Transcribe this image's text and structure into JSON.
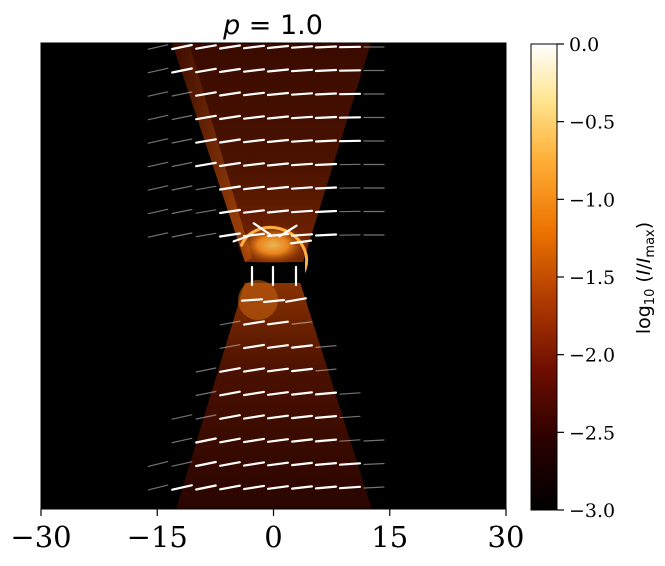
{
  "chart_data": {
    "type": "heatmap",
    "title": "p = 1.0",
    "xlim": [
      -30,
      30
    ],
    "x_ticks": [
      -30,
      -15,
      0,
      15,
      30
    ],
    "x_tick_labels": [
      "−30",
      "−15",
      "0",
      "15",
      "30"
    ],
    "ylabel": "",
    "colorbar": {
      "label": "log10 (I/Imax)",
      "range": [
        -3.0,
        0.0
      ],
      "ticks": [
        0.0,
        -0.5,
        -1.0,
        -1.5,
        -2.0,
        -2.5,
        -3.0
      ],
      "tick_labels": [
        "0.0",
        "−0.5",
        "−1.0",
        "−1.5",
        "−2.0",
        "−2.5",
        "−3.0"
      ],
      "colormap": "afmhot"
    },
    "colors": {
      "background": "#000000",
      "polarization_vectors": "#ffffff"
    }
  }
}
